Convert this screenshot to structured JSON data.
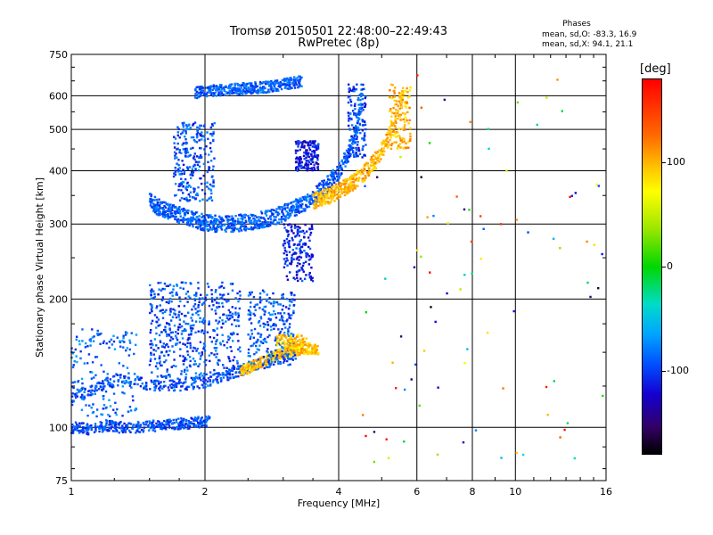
{
  "header": {
    "title_line1": "Tromsø 20150501 22:48:00–22:49:43",
    "title_line2": "RwPretec (8p)",
    "phases_heading": "Phases",
    "phases_o": "mean, sd,O: -83.3, 16.9",
    "phases_x": "mean, sd,X:  94.1, 21.1"
  },
  "colorbar": {
    "unit": "[deg]",
    "ticks": [
      {
        "label": "100",
        "value": 100
      },
      {
        "label": "0",
        "value": 0
      },
      {
        "label": "-100",
        "value": -100
      }
    ],
    "range": [
      -180,
      180
    ]
  },
  "chart_data": {
    "type": "scatter",
    "title": "Tromsø 20150501 22:48:00–22:49:43",
    "subtitle": "RwPretec (8p)",
    "xlabel": "Frequency [MHz]",
    "ylabel": "Stationary phase Virtual Height [km]",
    "xscale": "log",
    "yscale": "log",
    "xlim": [
      1,
      16
    ],
    "ylim": [
      75,
      750
    ],
    "xticks": [
      {
        "label": "1",
        "value": 1
      },
      {
        "label": "2",
        "value": 2
      },
      {
        "label": "4",
        "value": 4
      },
      {
        "label": "6",
        "value": 6
      },
      {
        "label": "8",
        "value": 8
      },
      {
        "label": "10",
        "value": 10
      },
      {
        "label": "16",
        "value": 16
      }
    ],
    "yticks": [
      {
        "label": "75",
        "value": 75
      },
      {
        "label": "100",
        "value": 100
      },
      {
        "label": "200",
        "value": 200
      },
      {
        "label": "300",
        "value": 300
      },
      {
        "label": "400",
        "value": 400
      },
      {
        "label": "500",
        "value": 500
      },
      {
        "label": "600",
        "value": 600
      },
      {
        "label": "750",
        "value": 750
      }
    ],
    "grid": true,
    "color_by": "phase (deg)",
    "traces": [
      {
        "desc": "E-layer trace",
        "f": [
          1.0,
          1.05,
          1.1,
          1.2,
          1.3,
          1.4,
          1.5,
          1.6,
          1.7,
          1.8,
          1.9,
          2.0,
          2.05
        ],
        "h": [
          100,
          100,
          99,
          101,
          100,
          100,
          101,
          101,
          102,
          102,
          103,
          103,
          104
        ],
        "phase": -95
      },
      {
        "desc": "Lower F trace O",
        "f": [
          1.0,
          1.1,
          1.2,
          1.3,
          1.4,
          1.5,
          1.6,
          1.8,
          2.0,
          2.2,
          2.4,
          2.6,
          2.8,
          3.0,
          3.2
        ],
        "h": [
          118,
          122,
          127,
          130,
          128,
          126,
          125,
          126,
          128,
          132,
          136,
          140,
          143,
          146,
          148
        ],
        "phase": -95
      },
      {
        "desc": "Lower F trace X",
        "f": [
          2.4,
          2.6,
          2.8,
          3.0,
          3.2,
          3.4,
          3.6
        ],
        "h": [
          135,
          140,
          145,
          150,
          152,
          153,
          152
        ],
        "phase": 95
      },
      {
        "desc": "F2 trace O",
        "f": [
          1.5,
          1.6,
          1.7,
          1.8,
          2.0,
          2.2,
          2.4,
          2.6,
          2.8,
          3.0,
          3.2,
          3.4,
          3.6,
          3.8,
          4.0,
          4.2,
          4.4,
          4.5
        ],
        "h": [
          340,
          325,
          318,
          312,
          302,
          300,
          302,
          305,
          310,
          318,
          328,
          340,
          355,
          375,
          400,
          440,
          500,
          600
        ],
        "phase": -90
      },
      {
        "desc": "F2 trace X",
        "f": [
          3.5,
          3.8,
          4.0,
          4.3,
          4.6,
          4.9,
          5.2,
          5.4,
          5.6
        ],
        "h": [
          340,
          350,
          360,
          375,
          400,
          430,
          480,
          540,
          620
        ],
        "phase": 100
      },
      {
        "desc": "Multi-hop trace",
        "f": [
          1.9,
          2.0,
          2.2,
          2.5,
          2.8,
          3.0,
          3.2,
          3.3
        ],
        "h": [
          610,
          615,
          620,
          625,
          630,
          638,
          645,
          650
        ],
        "phase": -90
      }
    ]
  }
}
